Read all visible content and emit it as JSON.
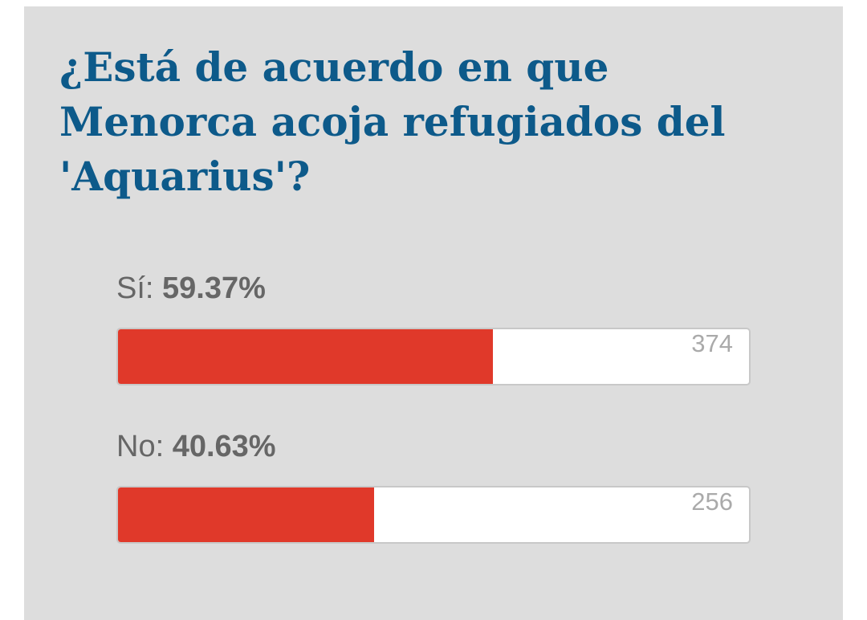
{
  "poll": {
    "title_lines": [
      "¿Está de acuerdo en que",
      "Menorca acoja refugiados del",
      "'Aquarius'?"
    ],
    "options": [
      {
        "label": "Sí:",
        "percent": 59.37,
        "percent_label": "59.37%",
        "votes": 374
      },
      {
        "label": "No:",
        "percent": 40.63,
        "percent_label": "40.63%",
        "votes": 256
      }
    ],
    "bar_color": "#e0392a"
  }
}
